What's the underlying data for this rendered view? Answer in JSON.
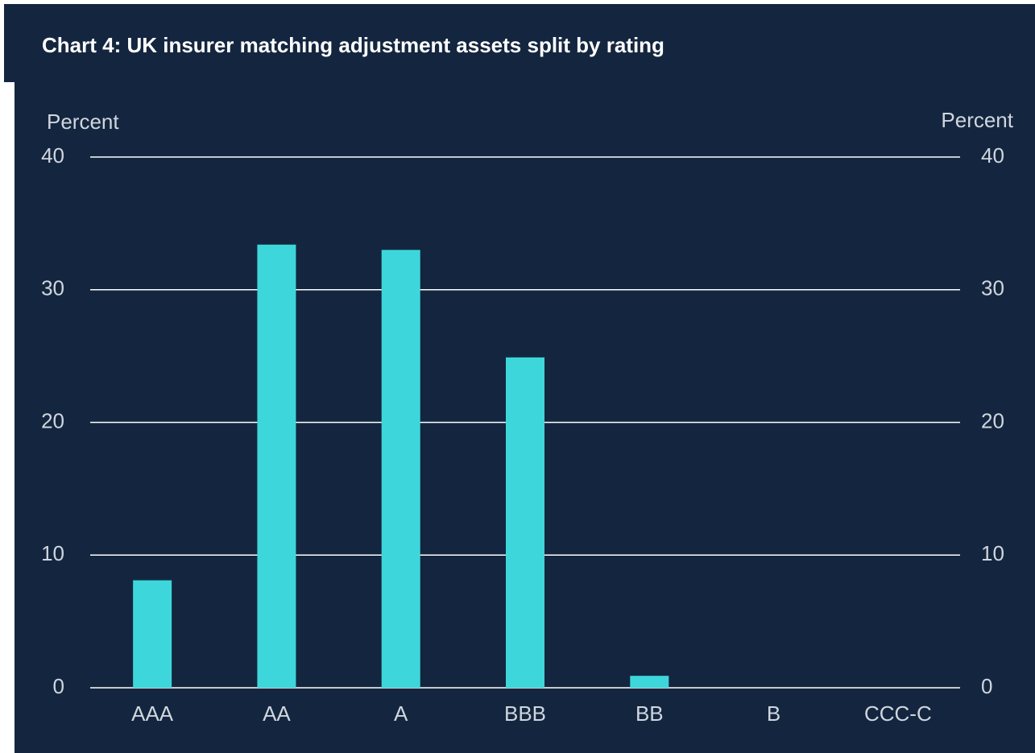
{
  "chart_data": {
    "type": "bar",
    "title": "Chart 4: UK insurer matching adjustment assets split by rating",
    "y_label": "Percent",
    "y2_label": "Percent",
    "categories": [
      "AAA",
      "AA",
      "A",
      "BBB",
      "BB",
      "B",
      "CCC-C"
    ],
    "values": [
      8.1,
      33.4,
      33.0,
      24.9,
      0.9,
      0,
      0
    ],
    "color": "#3dd7db",
    "ylim": [
      0,
      40
    ],
    "yticks": [
      0,
      10,
      20,
      30,
      40
    ],
    "y2lim": [
      0,
      40
    ],
    "y2ticks": [
      0,
      10,
      20,
      30,
      40
    ],
    "grid": true
  }
}
